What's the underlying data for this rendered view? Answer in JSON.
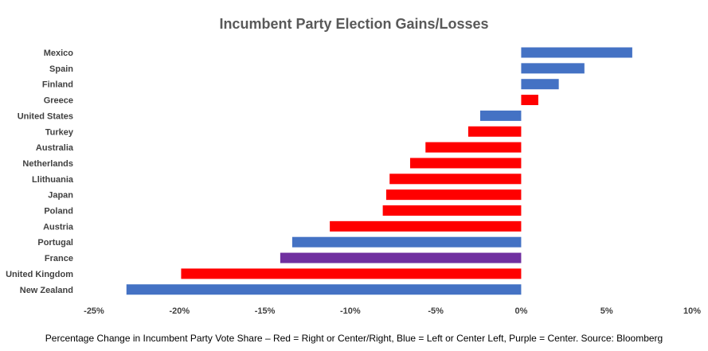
{
  "chart_data": {
    "type": "bar",
    "orientation": "horizontal",
    "title": "Incumbent Party Election Gains/Losses",
    "xlabel": "Percentage Change in Incumbent Party Vote Share – Red = Right or Center/Right, Blue = Left or Center Left, Purple = Center. Source: Bloomberg",
    "ylabel": "",
    "xlim": [
      -25,
      10
    ],
    "xticks": [
      "-25%",
      "-20%",
      "-15%",
      "-10%",
      "-5%",
      "0%",
      "5%",
      "10%"
    ],
    "xtick_values": [
      -25,
      -20,
      -15,
      -10,
      -5,
      0,
      5,
      10
    ],
    "grid": false,
    "legend": "none",
    "categories": [
      "Mexico",
      "Spain",
      "Finland",
      "Greece",
      "United States",
      "Turkey",
      "Australia",
      "Netherlands",
      "Llithuania",
      "Japan",
      "Poland",
      "Austria",
      "Portugal",
      "France",
      "United Kingdom",
      "New Zealand"
    ],
    "values": [
      6.5,
      3.7,
      2.2,
      1.0,
      -2.4,
      -3.1,
      -5.6,
      -6.5,
      -7.7,
      -7.9,
      -8.1,
      -11.2,
      -13.4,
      -14.1,
      -19.9,
      -23.1
    ],
    "bar_colors": [
      "#4472C4",
      "#4472C4",
      "#4472C4",
      "#FF0000",
      "#4472C4",
      "#FF0000",
      "#FF0000",
      "#FF0000",
      "#FF0000",
      "#FF0000",
      "#FF0000",
      "#FF0000",
      "#4472C4",
      "#7030A0",
      "#FF0000",
      "#4472C4"
    ]
  }
}
